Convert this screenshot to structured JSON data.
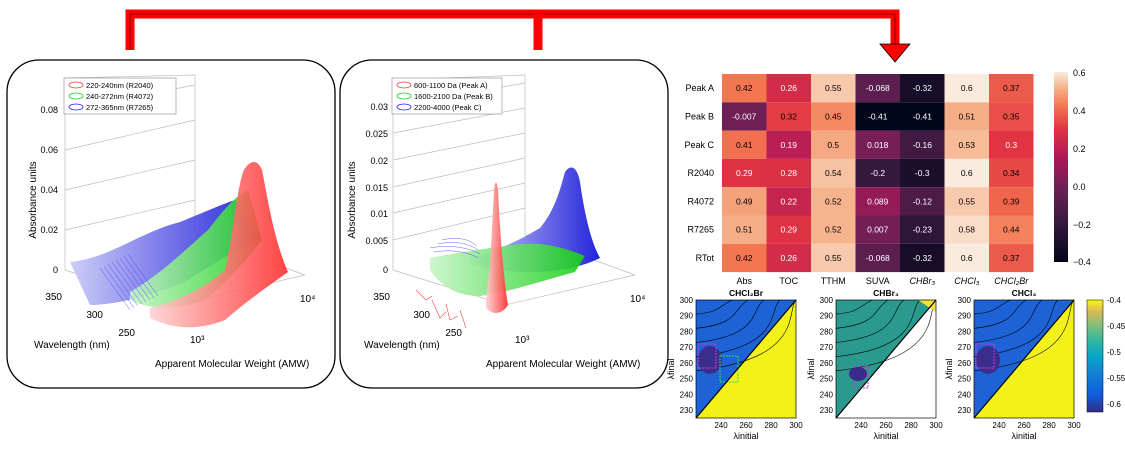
{
  "colors": {
    "arrow": "#ff0000",
    "red_series": "#ff3b3b",
    "green_series": "#22dd22",
    "blue_series": "#1a1aee",
    "triangle_fill": "#f2f21a"
  },
  "panel_a": {
    "ylabel": "Absorbance units",
    "xlabel": "Apparent Molecular Weight (AMW)",
    "zlabel": "Wavelength (nm)",
    "z_ticks": [
      "0",
      "0.02",
      "0.04",
      "0.06",
      "0.08"
    ],
    "wl_ticks": [
      "350",
      "300",
      "250"
    ],
    "amw_ticks": [
      "10³",
      "10⁴"
    ],
    "legend": [
      "220-240nm (R2040)",
      "240-272nm (R4072)",
      "272-365nm (R7265)"
    ]
  },
  "panel_b": {
    "ylabel": "Absorbance units",
    "xlabel": "Apparent Molecular Weight (AMW)",
    "zlabel": "Wavelength (nm)",
    "z_ticks": [
      "0",
      "0.005",
      "0.01",
      "0.015",
      "0.02",
      "0.025",
      "0.03"
    ],
    "wl_ticks": [
      "350",
      "300",
      "250"
    ],
    "amw_ticks": [
      "10³",
      "10⁴"
    ],
    "legend": [
      "600-1100 Da (Peak A)",
      "1600-2100 Da (Peak B)",
      "2200-4000 (Peak C)"
    ]
  },
  "chart_data": [
    {
      "type": "heatmap",
      "rows": [
        "Peak A",
        "Peak B",
        "Peak C",
        "R2040",
        "R4072",
        "R7265",
        "RTot"
      ],
      "columns": [
        "Abs",
        "TOC",
        "TTHM",
        "SUVA",
        "CHBr₃",
        "CHCl₃",
        "CHCl₂Br"
      ],
      "values": [
        [
          0.42,
          0.26,
          0.55,
          -0.068,
          -0.32,
          0.6,
          0.37
        ],
        [
          -0.007,
          0.32,
          0.45,
          -0.41,
          -0.41,
          0.51,
          0.35
        ],
        [
          0.41,
          0.19,
          0.5,
          0.018,
          -0.16,
          0.53,
          0.3
        ],
        [
          0.29,
          0.28,
          0.54,
          -0.2,
          -0.3,
          0.6,
          0.34
        ],
        [
          0.49,
          0.22,
          0.52,
          0.089,
          -0.12,
          0.55,
          0.39
        ],
        [
          0.51,
          0.29,
          0.52,
          0.007,
          -0.23,
          0.58,
          0.44
        ],
        [
          0.42,
          0.26,
          0.55,
          -0.068,
          -0.32,
          0.6,
          0.37
        ]
      ],
      "value_labels": [
        [
          "0.42",
          "0.26",
          "0.55",
          "-0.068",
          "-0.32",
          "0.6",
          "0.37"
        ],
        [
          "-0.007",
          "0.32",
          "0.45",
          "-0.41",
          "-0.41",
          "0.51",
          "0.35"
        ],
        [
          "0.41",
          "0.19",
          "0.5",
          "0.018",
          "-0.16",
          "0.53",
          "0.3"
        ],
        [
          "0.29",
          "0.28",
          "0.54",
          "-0.2",
          "-0.3",
          "0.6",
          "0.34"
        ],
        [
          "0.49",
          "0.22",
          "0.52",
          "0.089",
          "-0.12",
          "0.55",
          "0.39"
        ],
        [
          "0.51",
          "0.29",
          "0.52",
          "0.007",
          "-0.23",
          "0.58",
          "0.44"
        ],
        [
          "0.42",
          "0.26",
          "0.55",
          "-0.068",
          "-0.32",
          "0.6",
          "0.37"
        ]
      ],
      "colorbar": {
        "range": [
          -0.4,
          0.6
        ],
        "ticks": [
          "0.6",
          "0.4",
          "0.2",
          "0.0",
          "−0.2",
          "−0.4"
        ],
        "colormap": "rocket"
      }
    },
    {
      "type": "heatmap",
      "title": "CHCl₂Br",
      "xlabel": "λinitial",
      "ylabel": "λfinal",
      "xlim": [
        220,
        300
      ],
      "ylim": [
        225,
        300
      ],
      "x_ticks": [
        "240",
        "260",
        "280",
        "300"
      ],
      "y_ticks": [
        "300",
        "290",
        "280",
        "270",
        "260",
        "250",
        "240",
        "230"
      ]
    },
    {
      "type": "heatmap",
      "title": "CHBr₃",
      "xlabel": "λinitial",
      "ylabel": "λfinal",
      "xlim": [
        220,
        300
      ],
      "ylim": [
        225,
        300
      ],
      "x_ticks": [
        "240",
        "260",
        "280",
        "300"
      ],
      "y_ticks": [
        "300",
        "290",
        "280",
        "270",
        "260",
        "250",
        "240",
        "230"
      ]
    },
    {
      "type": "heatmap",
      "title": "CHCl₃",
      "xlabel": "λinitial",
      "ylabel": "λfinal",
      "xlim": [
        220,
        300
      ],
      "ylim": [
        225,
        300
      ],
      "x_ticks": [
        "240",
        "260",
        "280",
        "300"
      ],
      "y_ticks": [
        "300",
        "290",
        "280",
        "270",
        "260",
        "250",
        "240",
        "230"
      ],
      "colorbar": {
        "range": [
          -0.62,
          -0.4
        ],
        "ticks": [
          "-0.4",
          "-0.45",
          "-0.5",
          "-0.55",
          "-0.6"
        ],
        "colormap": "parula"
      }
    }
  ]
}
